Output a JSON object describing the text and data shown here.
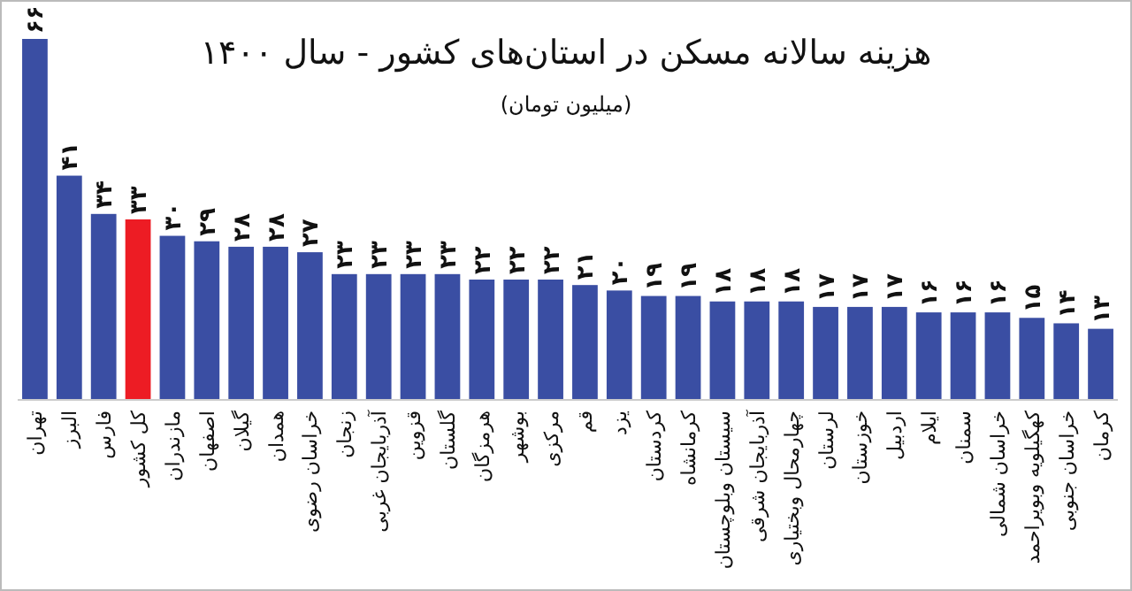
{
  "chart_data": {
    "type": "bar",
    "title": "هزینه سالانه مسکن در استان‌های کشور - سال ۱۴۰۰",
    "subtitle": "(میلیون تومان)",
    "categories": [
      "تهران",
      "البرز",
      "فارس",
      "کل کشور",
      "مازندران",
      "اصفهان",
      "گیلان",
      "همدان",
      "خراسان رضوی",
      "زنجان",
      "آذربایجان غربی",
      "قزوین",
      "گلستان",
      "هرمزگان",
      "بوشهر",
      "مرکزی",
      "قم",
      "یزد",
      "کردستان",
      "کرمانشاه",
      "سیستان وبلوچستان",
      "آذربایجان شرقی",
      "چهارمحال وبختیاری",
      "لرستان",
      "خوزستان",
      "اردبیل",
      "ایلام",
      "سمنان",
      "خراسان شمالی",
      "کهگیلویه وبویراحمد",
      "خراسان جنوبی",
      "کرمان"
    ],
    "values": [
      66,
      41,
      34,
      33,
      30,
      29,
      28,
      28,
      27,
      23,
      23,
      23,
      23,
      22,
      22,
      22,
      21,
      20,
      19,
      19,
      18,
      18,
      18,
      17,
      17,
      17,
      16,
      16,
      16,
      15,
      14,
      13
    ],
    "value_labels": [
      "۶۶",
      "۴۱",
      "۳۴",
      "۳۳",
      "۳۰",
      "۲۹",
      "۲۸",
      "۲۸",
      "۲۷",
      "۲۳",
      "۲۳",
      "۲۳",
      "۲۳",
      "۲۲",
      "۲۲",
      "۲۲",
      "۲۱",
      "۲۰",
      "۱۹",
      "۱۹",
      "۱۸",
      "۱۸",
      "۱۸",
      "۱۷",
      "۱۷",
      "۱۷",
      "۱۶",
      "۱۶",
      "۱۶",
      "۱۵",
      "۱۴",
      "۱۳"
    ],
    "colors": [
      "#3a4ea3",
      "#3a4ea3",
      "#3a4ea3",
      "#ed1c24",
      "#3a4ea3",
      "#3a4ea3",
      "#3a4ea3",
      "#3a4ea3",
      "#3a4ea3",
      "#3a4ea3",
      "#3a4ea3",
      "#3a4ea3",
      "#3a4ea3",
      "#3a4ea3",
      "#3a4ea3",
      "#3a4ea3",
      "#3a4ea3",
      "#3a4ea3",
      "#3a4ea3",
      "#3a4ea3",
      "#3a4ea3",
      "#3a4ea3",
      "#3a4ea3",
      "#3a4ea3",
      "#3a4ea3",
      "#3a4ea3",
      "#3a4ea3",
      "#3a4ea3",
      "#3a4ea3",
      "#3a4ea3",
      "#3a4ea3",
      "#3a4ea3"
    ]
  }
}
